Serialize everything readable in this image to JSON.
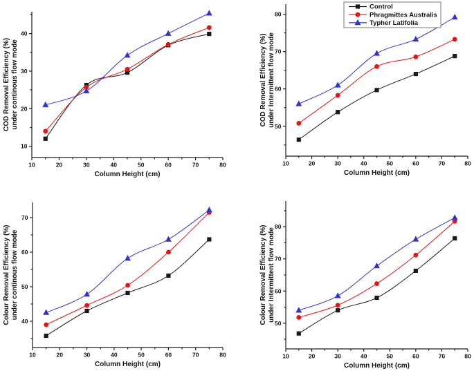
{
  "page": {
    "background": "#ffffff",
    "ink": "#1a1a1a"
  },
  "legend": {
    "entries": [
      {
        "label": "Control",
        "marker": "square",
        "color": "#1a1a1a"
      },
      {
        "label": "Phragmittes Australis",
        "marker": "circle",
        "color": "#e81414"
      },
      {
        "label": "Typher Latifolia",
        "marker": "triangle",
        "color": "#3333cc"
      }
    ]
  },
  "chart_data": [
    {
      "type": "line",
      "title": "",
      "xlabel": "Column Height (cm)",
      "ylabel_line1": "COD Removal Efficiency (%)",
      "ylabel_line2": "under continous flow mode",
      "x": [
        15,
        30,
        45,
        60,
        75
      ],
      "xlim": [
        10,
        80
      ],
      "xticks": [
        10,
        20,
        30,
        40,
        50,
        60,
        70,
        80
      ],
      "ylim": [
        7,
        45.8
      ],
      "yticks": [
        10,
        20,
        30,
        40
      ],
      "grid": false,
      "legend": false,
      "series": [
        {
          "name": "Control",
          "marker": "square",
          "color": "#1a1a1a",
          "values": [
            12,
            26.3,
            29.6,
            36.9,
            39.9
          ]
        },
        {
          "name": "Phragmittes Australis",
          "marker": "circle",
          "color": "#e81414",
          "values": [
            14,
            25.7,
            30.5,
            37.1,
            41.6
          ]
        },
        {
          "name": "Typher Latifolia",
          "marker": "triangle",
          "color": "#3333cc",
          "values": [
            21,
            24.7,
            34.2,
            40,
            45.4
          ]
        }
      ]
    },
    {
      "type": "line",
      "title": "",
      "xlabel": "Column Height (cm)",
      "ylabel_line1": "COD Removal Efficiency (%)",
      "ylabel_line2": "under Intermittent flow mode",
      "x": [
        15,
        30,
        45,
        60,
        75
      ],
      "xlim": [
        10,
        80
      ],
      "xticks": [
        10,
        20,
        30,
        40,
        50,
        60,
        70,
        80
      ],
      "ylim": [
        42,
        82.7
      ],
      "yticks": [
        50,
        60,
        70,
        80
      ],
      "grid": false,
      "legend": true,
      "legend_position": "top-inside",
      "series": [
        {
          "name": "Control",
          "marker": "square",
          "color": "#1a1a1a",
          "values": [
            46.4,
            53.8,
            59.7,
            64,
            68.8
          ]
        },
        {
          "name": "Phragmittes Australis",
          "marker": "circle",
          "color": "#e81414",
          "values": [
            50.8,
            58.3,
            66,
            68.6,
            73.3
          ]
        },
        {
          "name": "Typher Latifolia",
          "marker": "triangle",
          "color": "#3333cc",
          "values": [
            56,
            61,
            69.5,
            73.3,
            79.2
          ]
        }
      ]
    },
    {
      "type": "line",
      "title": "",
      "xlabel": "Column Height (cm)",
      "ylabel_line1": "Colour Removal Efficiency (%)",
      "ylabel_line2": "under continous flow mode",
      "x": [
        15,
        30,
        45,
        60,
        75
      ],
      "xlim": [
        10,
        80
      ],
      "xticks": [
        10,
        20,
        30,
        40,
        50,
        60,
        70,
        80
      ],
      "ylim": [
        32.4,
        74.4
      ],
      "yticks": [
        40,
        50,
        60,
        70
      ],
      "grid": false,
      "legend": false,
      "series": [
        {
          "name": "Control",
          "marker": "square",
          "color": "#1a1a1a",
          "values": [
            35.8,
            43,
            48.2,
            53.2,
            63.7
          ]
        },
        {
          "name": "Phragmittes Australis",
          "marker": "circle",
          "color": "#e81414",
          "values": [
            39,
            44.6,
            50.4,
            60,
            71.5
          ]
        },
        {
          "name": "Typher Latifolia",
          "marker": "triangle",
          "color": "#3333cc",
          "values": [
            42.5,
            47.8,
            58.2,
            63.7,
            72.2
          ]
        }
      ]
    },
    {
      "type": "line",
      "title": "",
      "xlabel": "Column Height (cm)",
      "ylabel_line1": "Colour Removal Efficiency (%)",
      "ylabel_line2": "under Intermittent flow mode",
      "x": [
        15,
        30,
        45,
        60,
        75
      ],
      "xlim": [
        10,
        80
      ],
      "xticks": [
        10,
        20,
        30,
        40,
        50,
        60,
        70,
        80
      ],
      "ylim": [
        42,
        88
      ],
      "yticks": [
        50,
        60,
        70,
        80
      ],
      "grid": false,
      "legend": false,
      "series": [
        {
          "name": "Control",
          "marker": "square",
          "color": "#1a1a1a",
          "values": [
            46.8,
            54,
            57.9,
            66.3,
            76.4
          ]
        },
        {
          "name": "Phragmittes Australis",
          "marker": "circle",
          "color": "#e81414",
          "values": [
            51.8,
            55.6,
            62.3,
            71.2,
            81.7
          ]
        },
        {
          "name": "Typher Latifolia",
          "marker": "triangle",
          "color": "#3333cc",
          "values": [
            54,
            58.5,
            67.8,
            76.1,
            82.8
          ]
        }
      ]
    }
  ]
}
